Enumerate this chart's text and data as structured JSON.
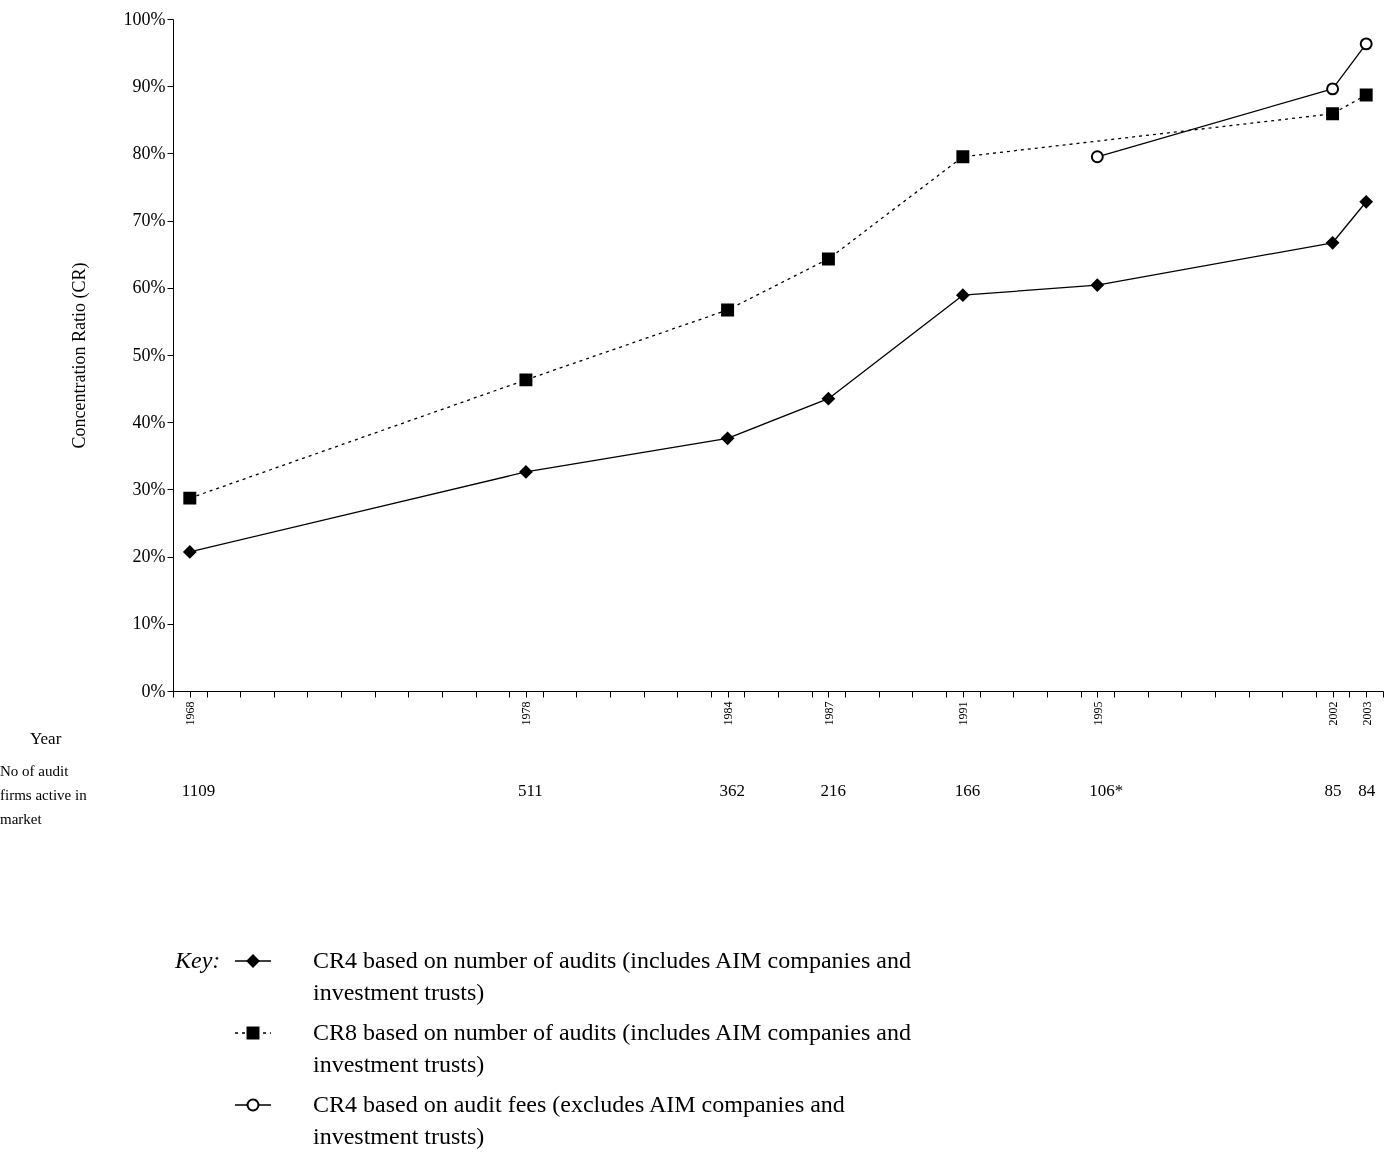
{
  "chart_data": {
    "type": "line",
    "ylabel": "Concentration Ratio (CR)",
    "legend_title": "Key:",
    "legend": "bottom",
    "grid": false,
    "xlim": [
      1967.5,
      2003.5
    ],
    "xticks": [
      {
        "value": 1967.5,
        "label": null
      },
      1968,
      {
        "value": 1968.5,
        "label": null
      },
      {
        "value": 1969.5,
        "label": null
      },
      {
        "value": 1970.5,
        "label": null
      },
      {
        "value": 1971.5,
        "label": null
      },
      {
        "value": 1972.5,
        "label": null
      },
      {
        "value": 1973.5,
        "label": null
      },
      {
        "value": 1974.5,
        "label": null
      },
      {
        "value": 1975.5,
        "label": null
      },
      {
        "value": 1976.5,
        "label": null
      },
      {
        "value": 1977.5,
        "label": null
      },
      1978,
      {
        "value": 1978.5,
        "label": null
      },
      {
        "value": 1979.5,
        "label": null
      },
      {
        "value": 1980.5,
        "label": null
      },
      {
        "value": 1981.5,
        "label": null
      },
      {
        "value": 1982.5,
        "label": null
      },
      {
        "value": 1983.5,
        "label": null
      },
      1984,
      {
        "value": 1984.5,
        "label": null
      },
      {
        "value": 1985.5,
        "label": null
      },
      {
        "value": 1986.5,
        "label": null
      },
      1987,
      {
        "value": 1987.5,
        "label": null
      },
      {
        "value": 1988.5,
        "label": null
      },
      {
        "value": 1989.5,
        "label": null
      },
      {
        "value": 1990.5,
        "label": null
      },
      1991,
      {
        "value": 1991.5,
        "label": null
      },
      {
        "value": 1992.5,
        "label": null
      },
      {
        "value": 1993.5,
        "label": null
      },
      {
        "value": 1994.5,
        "label": null
      },
      1995,
      {
        "value": 1995.5,
        "label": null
      },
      {
        "value": 1996.5,
        "label": null
      },
      {
        "value": 1997.5,
        "label": null
      },
      {
        "value": 1998.5,
        "label": null
      },
      {
        "value": 1999.5,
        "label": null
      },
      {
        "value": 2000.5,
        "label": null
      },
      {
        "value": 2001.5,
        "label": null
      },
      2002,
      {
        "value": 2002.5,
        "label": null
      },
      2003,
      {
        "value": 2003.5,
        "label": null
      }
    ],
    "ylim": [
      0,
      100
    ],
    "yticks": [
      {
        "value": 0,
        "label": "0%"
      },
      {
        "value": 10,
        "label": "10%"
      },
      {
        "value": 20,
        "label": "20%"
      },
      {
        "value": 30,
        "label": "30%"
      },
      {
        "value": 40,
        "label": "40%"
      },
      {
        "value": 50,
        "label": "50%"
      },
      {
        "value": 60,
        "label": "60%"
      },
      {
        "value": 70,
        "label": "70%"
      },
      {
        "value": 80,
        "label": "80%"
      },
      {
        "value": 90,
        "label": "90%"
      },
      {
        "value": 100,
        "label": "100%"
      }
    ],
    "series": [
      {
        "name": "CR4 based on number of audits (includes AIM companies and investment trusts)",
        "color": "#000000",
        "marker": "diamond",
        "line_style": "solid",
        "x": [
          1968,
          1978,
          1984,
          1987,
          1991,
          1995,
          2002,
          2003
        ],
        "values": [
          20.7,
          32.6,
          37.6,
          43.5,
          58.9,
          60.4,
          66.7,
          72.8
        ]
      },
      {
        "name": "CR8 based on number of audits (includes AIM companies and investment trusts)",
        "color": "#000000",
        "marker": "square",
        "line_style": "dotted",
        "x": [
          1968,
          1978,
          1984,
          1987,
          1991,
          2002,
          2003
        ],
        "values": [
          28.7,
          46.3,
          56.7,
          64.3,
          79.5,
          85.9,
          88.7
        ]
      },
      {
        "name": "CR4 based on audit fees (excludes AIM companies and investment trusts)",
        "color": "#000000",
        "marker": "circle",
        "line_style": "solid",
        "x": [
          1995,
          2002,
          2003
        ],
        "values": [
          79.5,
          89.6,
          96.3
        ]
      }
    ],
    "annotations": [
      "Year",
      "No of audit firms active in market",
      "1109",
      "511",
      "362",
      "216",
      "166",
      "106*",
      "85",
      "84"
    ]
  }
}
